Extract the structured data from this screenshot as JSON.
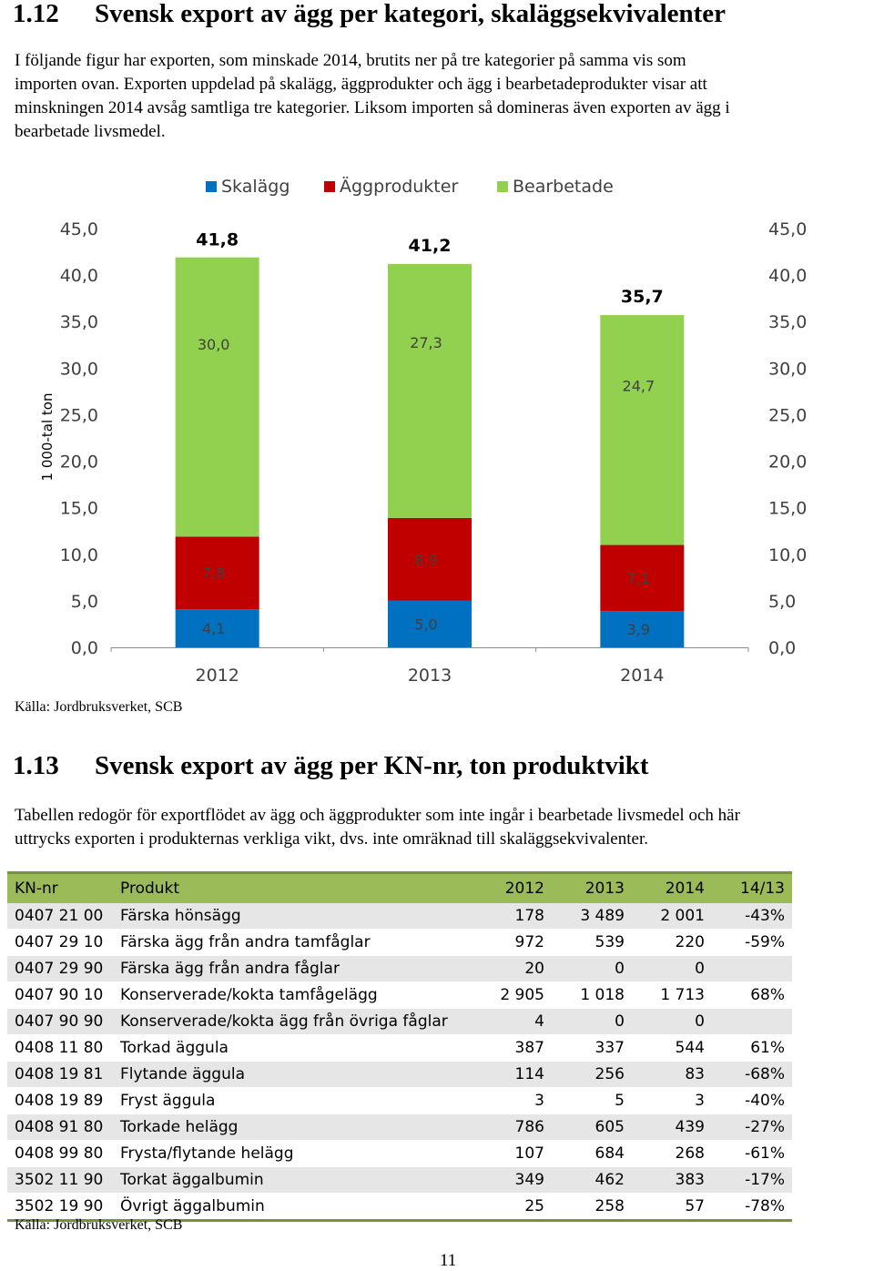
{
  "section1": {
    "number": "1.12",
    "title": "Svensk export av ägg per kategori, skaläggsekvivalenter",
    "paragraph_lines": [
      "I följande figur har exporten, som minskade 2014, brutits ner på tre kategorier på samma vis som",
      "importen ovan. Exporten uppdelad på skalägg, äggprodukter och ägg i bearbetadeprodukter visar att",
      "minskningen 2014 avsåg samtliga tre kategorier. Liksom importen så domineras även exporten av ägg i",
      "bearbetade livsmedel."
    ],
    "source": "Källa: Jordbruksverket, SCB"
  },
  "chart_data": {
    "type": "bar",
    "stacked": true,
    "categories": [
      "2012",
      "2013",
      "2014"
    ],
    "series": [
      {
        "name": "Skalägg",
        "values": [
          4.1,
          5.0,
          3.9
        ],
        "labels": [
          "4,1",
          "5,0",
          "3,9"
        ],
        "color": "#0070c0"
      },
      {
        "name": "Äggprodukter",
        "values": [
          7.8,
          8.9,
          7.1
        ],
        "labels": [
          "7,8",
          "8,9",
          "7,1"
        ],
        "color": "#c00000"
      },
      {
        "name": "Bearbetade",
        "values": [
          30.0,
          27.3,
          24.7
        ],
        "labels": [
          "30,0",
          "27,3",
          "24,7"
        ],
        "color": "#92d050"
      }
    ],
    "totals": [
      41.8,
      41.2,
      35.7
    ],
    "total_labels": [
      "41,8",
      "41,2",
      "35,7"
    ],
    "ylabel": "1 000-tal ton",
    "ylim": [
      0,
      45
    ],
    "yticks": [
      0,
      5,
      10,
      15,
      20,
      25,
      30,
      35,
      40,
      45
    ],
    "ytick_labels": [
      "0,0",
      "5,0",
      "10,0",
      "15,0",
      "20,0",
      "25,0",
      "30,0",
      "35,0",
      "40,0",
      "45,0"
    ],
    "secondary_axis": true,
    "legend_position": "top",
    "grid": false
  },
  "section2": {
    "number": "1.13",
    "title": "Svensk export av ägg per KN-nr, ton produktvikt",
    "paragraph_lines": [
      "Tabellen redogör för exportflödet av ägg och äggprodukter som inte ingår i bearbetade livsmedel och här",
      "uttrycks exporten i produkternas verkliga vikt, dvs. inte omräknad till skaläggsekvivalenter."
    ],
    "table": {
      "headers": [
        "KN-nr",
        "Produkt",
        "2012",
        "2013",
        "2014",
        "14/13"
      ],
      "rows": [
        [
          "0407 21 00",
          "Färska hönsägg",
          "178",
          "3 489",
          "2 001",
          "-43%"
        ],
        [
          "0407 29 10",
          "Färska ägg från andra tamfåglar",
          "972",
          "539",
          "220",
          "-59%"
        ],
        [
          "0407 29 90",
          "Färska ägg från andra fåglar",
          "20",
          "0",
          "0",
          ""
        ],
        [
          "0407 90 10",
          "Konserverade/kokta tamfågelägg",
          "2 905",
          "1 018",
          "1 713",
          "68%"
        ],
        [
          "0407 90 90",
          "Konserverade/kokta ägg från övriga fåglar",
          "4",
          "0",
          "0",
          ""
        ],
        [
          "0408 11 80",
          "Torkad äggula",
          "387",
          "337",
          "544",
          "61%"
        ],
        [
          "0408 19 81",
          "Flytande äggula",
          "114",
          "256",
          "83",
          "-68%"
        ],
        [
          "0408 19 89",
          "Fryst äggula",
          "3",
          "5",
          "3",
          "-40%"
        ],
        [
          "0408 91 80",
          "Torkade helägg",
          "786",
          "605",
          "439",
          "-27%"
        ],
        [
          "0408 99 80",
          "Frysta/flytande helägg",
          "107",
          "684",
          "268",
          "-61%"
        ],
        [
          "3502 11 90",
          "Torkat äggalbumin",
          "349",
          "462",
          "383",
          "-17%"
        ],
        [
          "3502 19 90",
          "Övrigt äggalbumin",
          "25",
          "258",
          "57",
          "-78%"
        ]
      ]
    },
    "source": "Källa: Jordbruksverket, SCB"
  },
  "page_number": "11"
}
